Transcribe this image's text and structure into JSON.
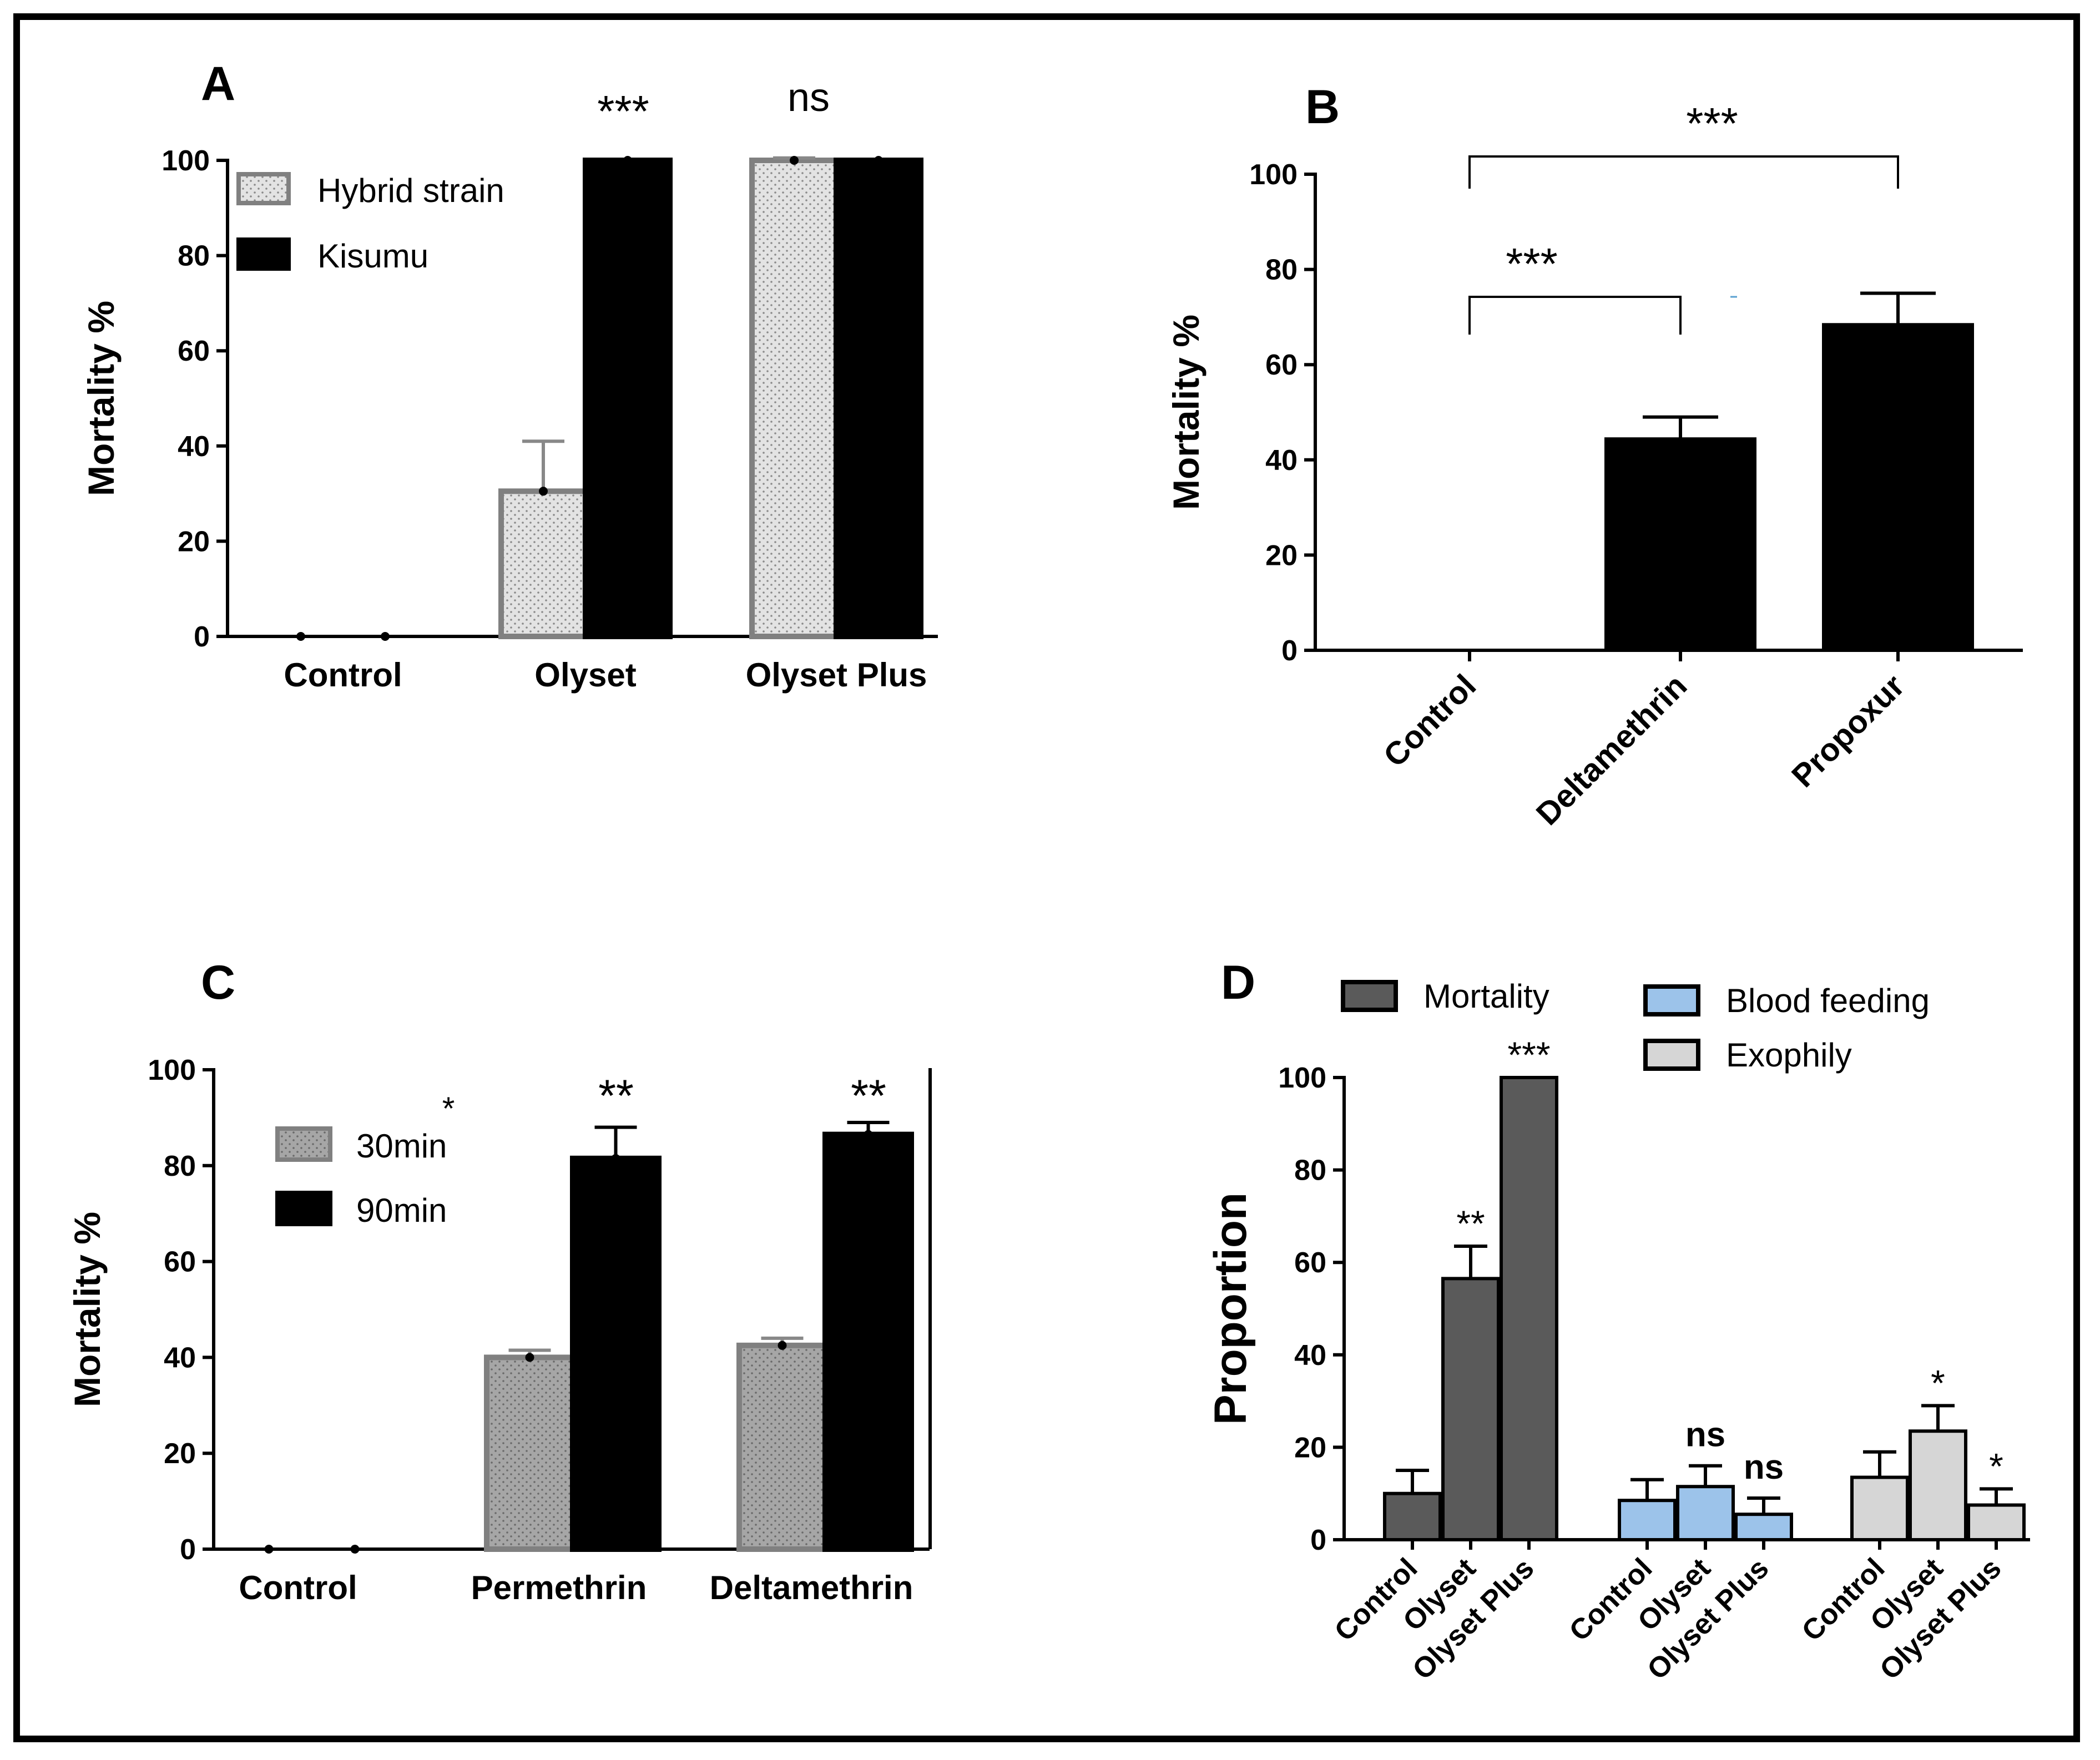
{
  "chart_data": [
    {
      "panel": "A",
      "type": "bar",
      "ylabel": "Mortality %",
      "ylim": [
        0,
        100
      ],
      "yticks": [
        0,
        20,
        40,
        60,
        80,
        100
      ],
      "categories": [
        "Control",
        "Olyset",
        "Olyset Plus"
      ],
      "series": [
        {
          "name": "Hybrid strain",
          "style": "dotted-light",
          "values": [
            0,
            30.5,
            100
          ],
          "errors": [
            0,
            10.5,
            0.5
          ]
        },
        {
          "name": "Kisumu",
          "style": "black",
          "values": [
            0,
            100,
            100
          ],
          "errors": [
            0,
            0,
            0
          ]
        }
      ],
      "annotations": [
        {
          "category": "Olyset",
          "text": "***"
        },
        {
          "category": "Olyset Plus",
          "text": "ns"
        }
      ]
    },
    {
      "panel": "B",
      "type": "bar",
      "ylabel": "Mortality %",
      "ylim": [
        0,
        100
      ],
      "yticks": [
        0,
        20,
        40,
        60,
        80,
        100
      ],
      "categories": [
        "Control",
        "Deltamethrin",
        "Propoxur"
      ],
      "series": [
        {
          "name": "Mortality",
          "style": "black",
          "values": [
            0,
            44.5,
            68.5
          ],
          "errors": [
            0,
            4.5,
            6.5
          ]
        }
      ],
      "comparisons": [
        {
          "from": "Control",
          "to": "Deltamethrin",
          "text": "***"
        },
        {
          "from": "Control",
          "to": "Propoxur",
          "text": "***"
        }
      ]
    },
    {
      "panel": "C",
      "type": "bar",
      "ylabel": "Mortality %",
      "ylim": [
        0,
        100
      ],
      "yticks": [
        0,
        20,
        40,
        60,
        80,
        100
      ],
      "categories": [
        "Control",
        "Permethrin",
        "Deltamethrin"
      ],
      "series": [
        {
          "name": "30min",
          "style": "dotted-mid",
          "values": [
            0,
            40,
            42.5
          ],
          "errors": [
            0,
            1.5,
            1.5
          ]
        },
        {
          "name": "90min",
          "style": "black",
          "values": [
            0,
            81.5,
            86.5
          ],
          "errors": [
            0,
            6.5,
            2.5
          ]
        }
      ],
      "annotations": [
        {
          "category": "Permethrin",
          "text": "**"
        },
        {
          "category": "Deltamethrin",
          "text": "**"
        }
      ],
      "legend_mark": "*"
    },
    {
      "panel": "D",
      "type": "bar",
      "ylabel": "Proportion",
      "ylim": [
        0,
        100
      ],
      "yticks": [
        0,
        20,
        40,
        60,
        80,
        100
      ],
      "groups": [
        {
          "name": "Mortality",
          "color": "#5a5a5a",
          "categories": [
            "Control",
            "Olyset",
            "Olyset Plus"
          ],
          "values": [
            10,
            56.5,
            100
          ],
          "errors": [
            5,
            7,
            0
          ],
          "labels": [
            "",
            "**",
            "***"
          ]
        },
        {
          "name": "Blood feeding",
          "color": "#9cc3ea",
          "categories": [
            "Control",
            "Olyset",
            "Olyset Plus"
          ],
          "values": [
            8.5,
            11.5,
            5.5
          ],
          "errors": [
            4.5,
            4.5,
            3.5
          ],
          "labels": [
            "",
            "ns",
            "ns"
          ]
        },
        {
          "name": "Exophily",
          "color": "#d6d6d6",
          "categories": [
            "Control",
            "Olyset",
            "Olyset Plus"
          ],
          "values": [
            13.5,
            23.5,
            7.5
          ],
          "errors": [
            5.5,
            5.5,
            3.5
          ],
          "labels": [
            "",
            "*",
            "*"
          ]
        }
      ]
    }
  ]
}
